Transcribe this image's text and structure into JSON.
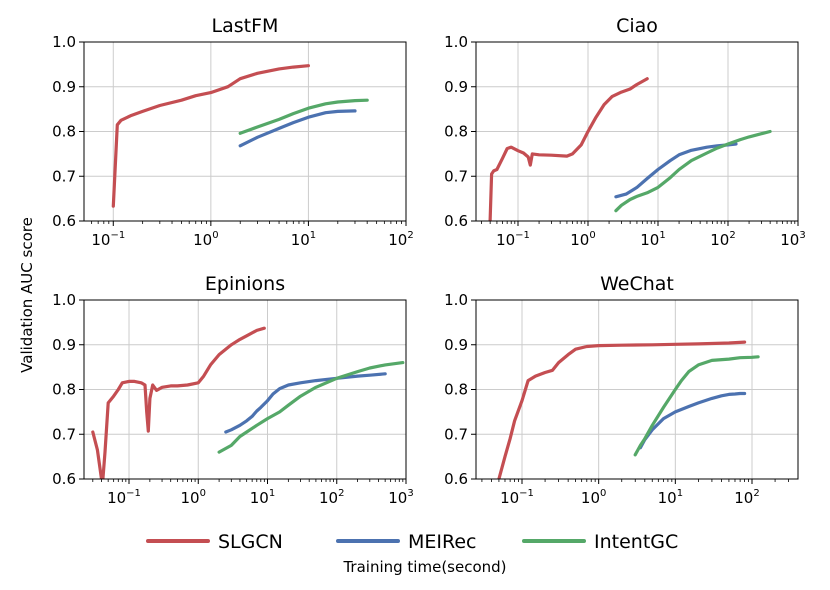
{
  "figure": {
    "ylabel": "Validation AUC score",
    "xlabel": "Training time(second)"
  },
  "colors": {
    "SLGCN": "#c44e52",
    "MEIRec": "#4c72b0",
    "IntentGC": "#55a868",
    "grid": "#cccccc",
    "axis": "#000000"
  },
  "legend": [
    {
      "name": "SLGCN"
    },
    {
      "name": "MEIRec"
    },
    {
      "name": "IntentGC"
    }
  ],
  "chart_data": [
    {
      "type": "line",
      "title": "LastFM",
      "xscale": "log",
      "xlim_exp": [
        -1.3,
        2
      ],
      "xticks_exp": [
        -1,
        0,
        1,
        2
      ],
      "xtick_labels": [
        "10",
        "10",
        "10",
        "10"
      ],
      "xtick_sups": [
        "−1",
        "0",
        "1",
        "2"
      ],
      "ylim": [
        0.6,
        1.0
      ],
      "yticks": [
        "0.6",
        "0.7",
        "0.8",
        "0.9",
        "1.0"
      ],
      "series": [
        {
          "name": "SLGCN",
          "x": [
            0.1,
            0.11,
            0.12,
            0.15,
            0.2,
            0.3,
            0.5,
            0.7,
            1.0,
            1.5,
            2,
            3,
            5,
            7,
            10
          ],
          "y": [
            0.633,
            0.815,
            0.825,
            0.835,
            0.845,
            0.858,
            0.87,
            0.88,
            0.887,
            0.9,
            0.918,
            0.93,
            0.94,
            0.944,
            0.947
          ]
        },
        {
          "name": "MEIRec",
          "x": [
            2,
            3,
            5,
            7,
            10,
            15,
            20,
            30
          ],
          "y": [
            0.768,
            0.787,
            0.807,
            0.82,
            0.832,
            0.842,
            0.845,
            0.846
          ]
        },
        {
          "name": "IntentGC",
          "x": [
            2,
            3,
            5,
            7,
            10,
            15,
            20,
            30,
            40
          ],
          "y": [
            0.796,
            0.81,
            0.827,
            0.84,
            0.852,
            0.862,
            0.866,
            0.869,
            0.87
          ]
        }
      ]
    },
    {
      "type": "line",
      "title": "Ciao",
      "xscale": "log",
      "xlim_exp": [
        -1.6,
        3
      ],
      "xticks_exp": [
        -1,
        0,
        1,
        2,
        3
      ],
      "xtick_labels": [
        "10",
        "10",
        "10",
        "10",
        "10"
      ],
      "xtick_sups": [
        "−1",
        "0",
        "1",
        "2",
        "3"
      ],
      "ylim": [
        0.6,
        1.0
      ],
      "yticks": [
        "0.6",
        "0.7",
        "0.8",
        "0.9",
        "1.0"
      ],
      "series": [
        {
          "name": "SLGCN",
          "x": [
            0.04,
            0.042,
            0.045,
            0.05,
            0.06,
            0.07,
            0.08,
            0.1,
            0.12,
            0.14,
            0.15,
            0.16,
            0.2,
            0.3,
            0.5,
            0.6,
            0.8,
            1.0,
            1.3,
            1.7,
            2.2,
            3,
            4,
            5,
            6,
            7
          ],
          "y": [
            0.6,
            0.705,
            0.712,
            0.715,
            0.74,
            0.762,
            0.765,
            0.757,
            0.752,
            0.743,
            0.725,
            0.75,
            0.748,
            0.747,
            0.745,
            0.75,
            0.77,
            0.8,
            0.832,
            0.86,
            0.878,
            0.888,
            0.895,
            0.905,
            0.912,
            0.918
          ]
        },
        {
          "name": "MEIRec",
          "x": [
            2.5,
            3.5,
            5,
            7,
            10,
            15,
            20,
            30,
            50,
            70,
            100,
            130
          ],
          "y": [
            0.654,
            0.66,
            0.675,
            0.695,
            0.715,
            0.735,
            0.748,
            0.758,
            0.765,
            0.768,
            0.77,
            0.772
          ]
        },
        {
          "name": "IntentGC",
          "x": [
            2.5,
            3,
            4,
            5,
            7,
            10,
            15,
            20,
            30,
            50,
            70,
            100,
            150,
            200,
            300,
            400
          ],
          "y": [
            0.623,
            0.635,
            0.648,
            0.655,
            0.663,
            0.675,
            0.697,
            0.715,
            0.735,
            0.752,
            0.763,
            0.772,
            0.782,
            0.788,
            0.795,
            0.8
          ]
        }
      ]
    },
    {
      "type": "line",
      "title": "Epinions",
      "xscale": "log",
      "xlim_exp": [
        -1.65,
        3
      ],
      "xticks_exp": [
        -1,
        0,
        1,
        2,
        3
      ],
      "xtick_labels": [
        "10",
        "10",
        "10",
        "10",
        "10"
      ],
      "xtick_sups": [
        "−1",
        "0",
        "1",
        "2",
        "3"
      ],
      "ylim": [
        0.6,
        1.0
      ],
      "yticks": [
        "0.6",
        "0.7",
        "0.8",
        "0.9",
        "1.0"
      ],
      "series": [
        {
          "name": "SLGCN",
          "x": [
            0.03,
            0.035,
            0.04,
            0.042,
            0.045,
            0.05,
            0.06,
            0.07,
            0.08,
            0.1,
            0.12,
            0.15,
            0.17,
            0.18,
            0.19,
            0.2,
            0.22,
            0.25,
            0.3,
            0.4,
            0.5,
            0.7,
            1.0,
            1.2,
            1.5,
            2,
            3,
            4,
            5,
            7,
            9
          ],
          "y": [
            0.705,
            0.665,
            0.6,
            0.6,
            0.66,
            0.77,
            0.785,
            0.8,
            0.815,
            0.818,
            0.818,
            0.815,
            0.81,
            0.75,
            0.707,
            0.78,
            0.81,
            0.798,
            0.805,
            0.808,
            0.808,
            0.81,
            0.815,
            0.83,
            0.855,
            0.878,
            0.9,
            0.912,
            0.92,
            0.932,
            0.937
          ]
        },
        {
          "name": "MEIRec",
          "x": [
            2.5,
            3,
            4,
            5,
            6,
            7,
            8,
            10,
            12,
            15,
            20,
            30,
            50,
            100,
            200,
            300,
            500
          ],
          "y": [
            0.705,
            0.71,
            0.72,
            0.73,
            0.74,
            0.752,
            0.76,
            0.775,
            0.79,
            0.802,
            0.81,
            0.815,
            0.82,
            0.825,
            0.83,
            0.832,
            0.835
          ]
        },
        {
          "name": "IntentGC",
          "x": [
            2,
            3,
            4,
            5,
            7,
            10,
            15,
            20,
            30,
            50,
            100,
            200,
            300,
            500,
            900
          ],
          "y": [
            0.66,
            0.675,
            0.695,
            0.705,
            0.72,
            0.735,
            0.75,
            0.765,
            0.785,
            0.805,
            0.825,
            0.84,
            0.848,
            0.855,
            0.86
          ]
        }
      ]
    },
    {
      "type": "line",
      "title": "WeChat",
      "xscale": "log",
      "xlim_exp": [
        -1.6,
        2.6
      ],
      "xticks_exp": [
        -1,
        0,
        1,
        2
      ],
      "xtick_labels": [
        "10",
        "10",
        "10",
        "10"
      ],
      "xtick_sups": [
        "−1",
        "0",
        "1",
        "2"
      ],
      "ylim": [
        0.6,
        1.0
      ],
      "yticks": [
        "0.6",
        "0.7",
        "0.8",
        "0.9",
        "1.0"
      ],
      "series": [
        {
          "name": "SLGCN",
          "x": [
            0.05,
            0.06,
            0.07,
            0.08,
            0.1,
            0.12,
            0.15,
            0.2,
            0.25,
            0.3,
            0.4,
            0.5,
            0.7,
            1.0,
            2,
            5,
            10,
            20,
            50,
            80
          ],
          "y": [
            0.6,
            0.65,
            0.69,
            0.73,
            0.775,
            0.82,
            0.83,
            0.838,
            0.843,
            0.86,
            0.878,
            0.89,
            0.896,
            0.898,
            0.899,
            0.9,
            0.901,
            0.902,
            0.904,
            0.906
          ]
        },
        {
          "name": "MEIRec",
          "x": [
            3.5,
            4,
            5,
            7,
            10,
            15,
            20,
            30,
            40,
            50,
            60,
            70,
            80
          ],
          "y": [
            0.67,
            0.688,
            0.71,
            0.735,
            0.75,
            0.762,
            0.77,
            0.78,
            0.786,
            0.789,
            0.79,
            0.791,
            0.791
          ]
        },
        {
          "name": "IntentGC",
          "x": [
            3,
            3.5,
            4,
            5,
            7,
            10,
            12,
            15,
            20,
            30,
            50,
            70,
            100,
            120
          ],
          "y": [
            0.654,
            0.675,
            0.69,
            0.72,
            0.76,
            0.8,
            0.82,
            0.84,
            0.855,
            0.865,
            0.868,
            0.871,
            0.872,
            0.873
          ]
        }
      ]
    }
  ]
}
